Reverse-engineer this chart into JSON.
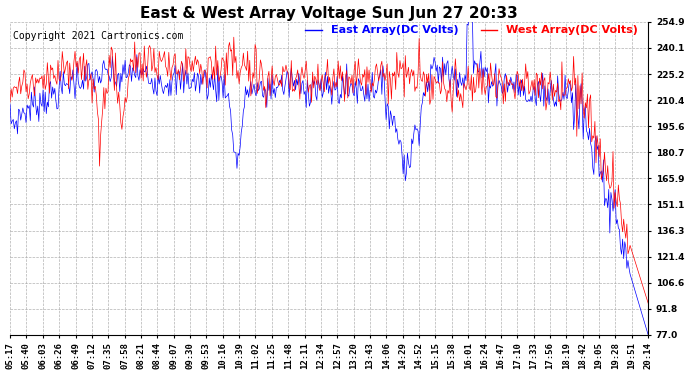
{
  "title": "East & West Array Voltage Sun Jun 27 20:33",
  "copyright": "Copyright 2021 Cartronics.com",
  "legend_east": "East Array(DC Volts)",
  "legend_west": "West Array(DC Volts)",
  "color_east": "blue",
  "color_west": "red",
  "background_color": "white",
  "grid_color": "#aaaaaa",
  "yticks": [
    77.0,
    91.8,
    106.6,
    121.4,
    136.3,
    151.1,
    165.9,
    180.7,
    195.6,
    210.4,
    225.2,
    240.1,
    254.9
  ],
  "ymin": 77.0,
  "ymax": 254.9,
  "title_fontsize": 11,
  "copyright_fontsize": 7,
  "legend_fontsize": 8,
  "tick_fontsize": 6.5,
  "xtick_labels": [
    "05:17",
    "05:40",
    "06:03",
    "06:26",
    "06:49",
    "07:12",
    "07:35",
    "07:58",
    "08:21",
    "08:44",
    "09:07",
    "09:30",
    "09:53",
    "10:16",
    "10:39",
    "11:02",
    "11:25",
    "11:48",
    "12:11",
    "12:34",
    "12:57",
    "13:20",
    "13:43",
    "14:06",
    "14:29",
    "14:52",
    "15:15",
    "15:38",
    "16:01",
    "16:24",
    "16:47",
    "17:10",
    "17:33",
    "17:56",
    "18:19",
    "18:42",
    "19:05",
    "19:28",
    "19:51",
    "20:14"
  ],
  "n_points": 600,
  "seed": 7
}
